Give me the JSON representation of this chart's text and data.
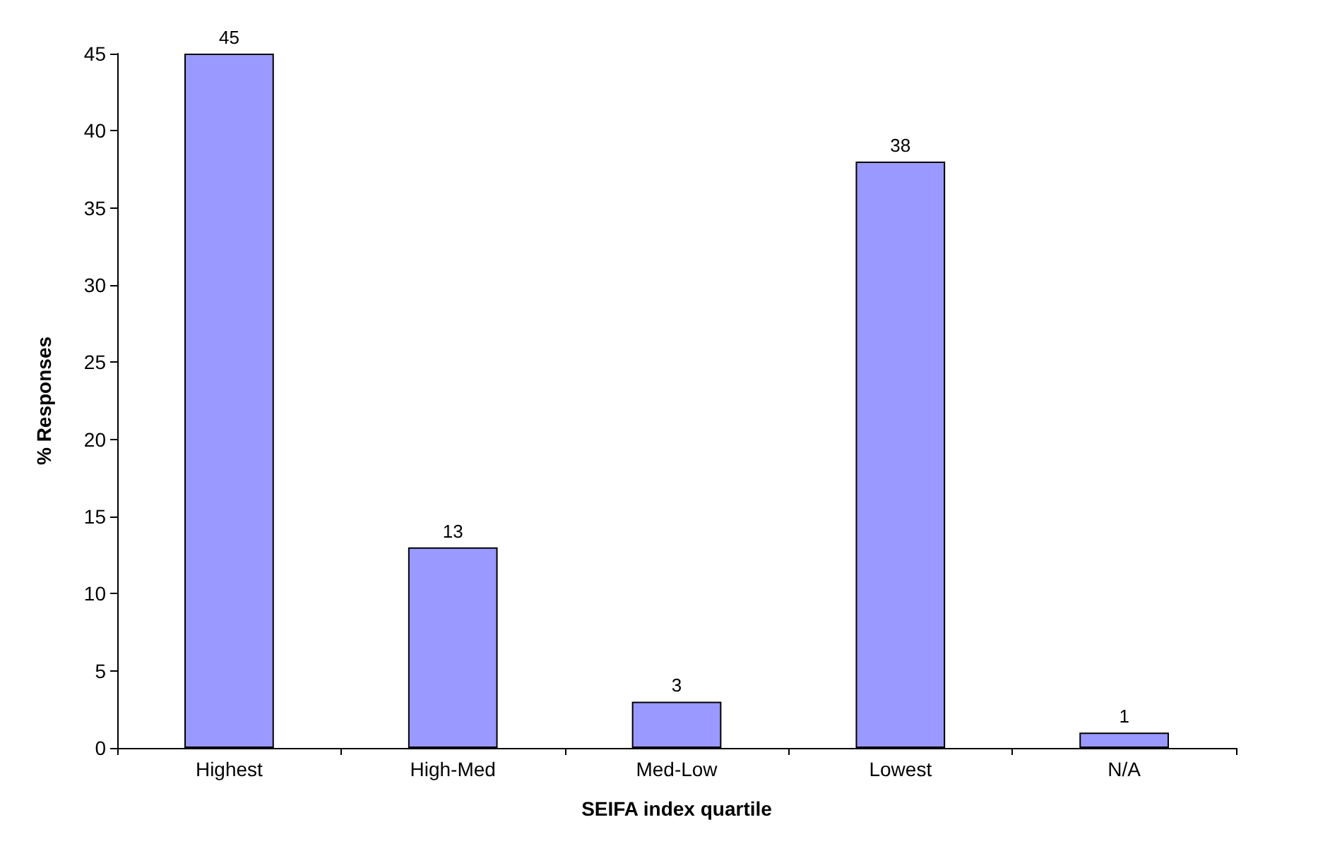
{
  "chart_data": {
    "type": "bar",
    "xlabel": "SEIFA index quartile",
    "ylabel": "% Responses",
    "categories": [
      "Highest",
      "High-Med",
      "Med-Low",
      "Lowest",
      "N/A"
    ],
    "values": [
      45,
      13,
      3,
      38,
      1
    ],
    "color": "#9999ff",
    "data_labels": true,
    "ylim": [
      0,
      45
    ],
    "yticks": [
      0,
      5,
      10,
      15,
      20,
      25,
      30,
      35,
      40,
      45
    ],
    "grid": false
  }
}
